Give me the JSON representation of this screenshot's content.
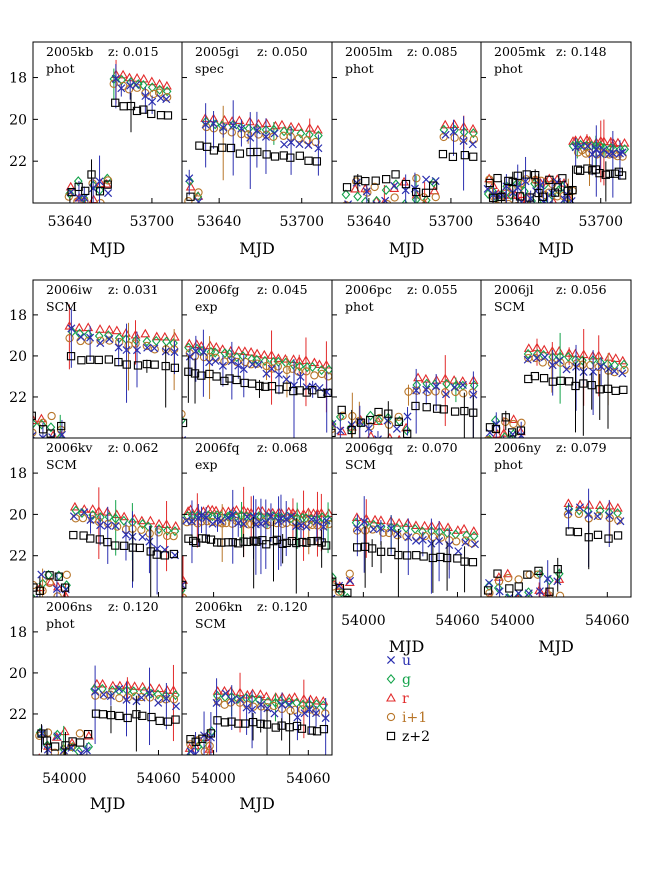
{
  "chart_data": {
    "type": "scatter",
    "y_inverted": true,
    "ylim": [
      24,
      16.3
    ],
    "y_ticks": [
      "18",
      "20",
      "22"
    ],
    "legend": {
      "placement": "lower-right",
      "entries": [
        {
          "marker": "cross",
          "label": "u",
          "color": "#2b2fb0"
        },
        {
          "marker": "diamond",
          "label": "g",
          "color": "#13a34a"
        },
        {
          "marker": "triangle",
          "label": "r",
          "color": "#e22b2b"
        },
        {
          "marker": "circle",
          "label": "i+1",
          "color": "#b8762a"
        },
        {
          "marker": "square",
          "label": "z+2",
          "color": "#000000"
        }
      ]
    },
    "panel_groups": [
      {
        "row": 0,
        "xlim": [
          53613,
          53722
        ],
        "x_ticks": [
          53640,
          53700
        ],
        "x_tick_labels": [
          "53640",
          "53700"
        ],
        "xlabel": "MJD",
        "panels": [
          {
            "name": "2005kb",
            "z": "z:  0.015",
            "method": "phot"
          },
          {
            "name": "2005gi",
            "z": "z:  0.050",
            "method": "spec"
          },
          {
            "name": "2005lm",
            "z": "z:  0.085",
            "method": "phot"
          },
          {
            "name": "2005mk",
            "z": "z:  0.148",
            "method": "phot"
          }
        ]
      },
      {
        "row": 1,
        "xlim": [
          53980,
          54075
        ],
        "x_ticks": [],
        "x_tick_labels": [],
        "xlabel": "",
        "panels": [
          {
            "name": "2006iw",
            "z": "z:  0.031",
            "method": "SCM"
          },
          {
            "name": "2006fg",
            "z": "z:  0.045",
            "method": "exp"
          },
          {
            "name": "2006pc",
            "z": "z:  0.055",
            "method": "phot"
          },
          {
            "name": "2006jl",
            "z": "z:  0.056",
            "method": "SCM"
          }
        ]
      },
      {
        "row": 2,
        "xlim": [
          53980,
          54075
        ],
        "x_ticks": [
          54000,
          54060
        ],
        "x_tick_labels_columns": [
          2,
          3
        ],
        "x_tick_labels": [
          "54000",
          "54060"
        ],
        "xlabel": "MJD",
        "xlabel_columns": [
          2,
          3
        ],
        "panels": [
          {
            "name": "2006kv",
            "z": "z:  0.062",
            "method": "SCM"
          },
          {
            "name": "2006fq",
            "z": "z:  0.068",
            "method": "exp"
          },
          {
            "name": "2006gq",
            "z": "z:  0.070",
            "method": "SCM"
          },
          {
            "name": "2006ny",
            "z": "z:  0.079",
            "method": "phot"
          }
        ]
      },
      {
        "row": 3,
        "xlim": [
          53980,
          54075
        ],
        "x_ticks": [
          54000,
          54060
        ],
        "x_tick_labels": [
          "54000",
          "54060"
        ],
        "xlabel": "MJD",
        "panels": [
          {
            "name": "2006ns",
            "z": "z:  0.120",
            "method": "phot"
          },
          {
            "name": "2006kn",
            "z": "z:  0.120",
            "method": "SCM"
          }
        ]
      }
    ]
  }
}
